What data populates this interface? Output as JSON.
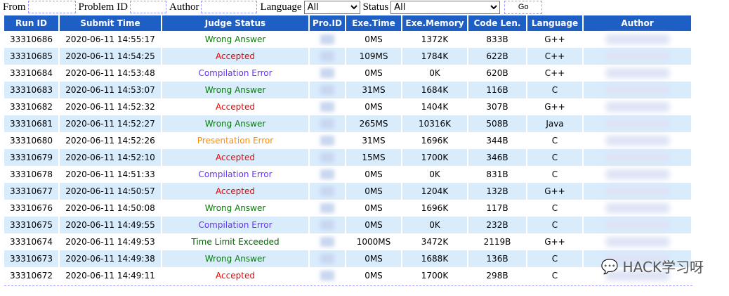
{
  "filters": {
    "from_label": "From",
    "from_value": "",
    "problem_label": "Problem ID",
    "problem_value": "",
    "author_label": "Author",
    "author_value": "",
    "language_label": "Language",
    "language_value": "All",
    "status_label": "Status",
    "status_value": "All",
    "go_label": "Go"
  },
  "columns": [
    "Run ID",
    "Submit Time",
    "Judge Status",
    "Pro.ID",
    "Exe.Time",
    "Exe.Memory",
    "Code Len.",
    "Language",
    "Author"
  ],
  "status_colors": {
    "Wrong Answer": "#008000",
    "Accepted": "#ee0000",
    "Compilation Error": "#6633ff",
    "Presentation Error": "#ff8c00",
    "Time Limit Exceeded": "#006000"
  },
  "rows": [
    {
      "run_id": "33310686",
      "time": "2020-06-11 14:55:17",
      "status": "Wrong Answer",
      "cls": "WA",
      "exe_time": "0MS",
      "memory": "1372K",
      "code_len": "833B",
      "lang": "G++"
    },
    {
      "run_id": "33310685",
      "time": "2020-06-11 14:54:25",
      "status": "Accepted",
      "cls": "AC",
      "exe_time": "109MS",
      "memory": "1784K",
      "code_len": "622B",
      "lang": "C++"
    },
    {
      "run_id": "33310684",
      "time": "2020-06-11 14:53:48",
      "status": "Compilation Error",
      "cls": "CE",
      "exe_time": "0MS",
      "memory": "0K",
      "code_len": "620B",
      "lang": "C++"
    },
    {
      "run_id": "33310683",
      "time": "2020-06-11 14:53:07",
      "status": "Wrong Answer",
      "cls": "WA",
      "exe_time": "31MS",
      "memory": "1684K",
      "code_len": "116B",
      "lang": "C"
    },
    {
      "run_id": "33310682",
      "time": "2020-06-11 14:52:32",
      "status": "Accepted",
      "cls": "AC",
      "exe_time": "0MS",
      "memory": "1404K",
      "code_len": "307B",
      "lang": "G++"
    },
    {
      "run_id": "33310681",
      "time": "2020-06-11 14:52:27",
      "status": "Wrong Answer",
      "cls": "WA",
      "exe_time": "265MS",
      "memory": "10316K",
      "code_len": "508B",
      "lang": "Java"
    },
    {
      "run_id": "33310680",
      "time": "2020-06-11 14:52:26",
      "status": "Presentation Error",
      "cls": "PE",
      "exe_time": "31MS",
      "memory": "1696K",
      "code_len": "344B",
      "lang": "C"
    },
    {
      "run_id": "33310679",
      "time": "2020-06-11 14:52:10",
      "status": "Accepted",
      "cls": "AC",
      "exe_time": "15MS",
      "memory": "1700K",
      "code_len": "346B",
      "lang": "C"
    },
    {
      "run_id": "33310678",
      "time": "2020-06-11 14:51:33",
      "status": "Compilation Error",
      "cls": "CE",
      "exe_time": "0MS",
      "memory": "0K",
      "code_len": "831B",
      "lang": "C"
    },
    {
      "run_id": "33310677",
      "time": "2020-06-11 14:50:57",
      "status": "Accepted",
      "cls": "AC",
      "exe_time": "0MS",
      "memory": "1204K",
      "code_len": "132B",
      "lang": "G++"
    },
    {
      "run_id": "33310676",
      "time": "2020-06-11 14:50:08",
      "status": "Wrong Answer",
      "cls": "WA",
      "exe_time": "0MS",
      "memory": "1696K",
      "code_len": "117B",
      "lang": "C"
    },
    {
      "run_id": "33310675",
      "time": "2020-06-11 14:49:55",
      "status": "Compilation Error",
      "cls": "CE",
      "exe_time": "0MS",
      "memory": "0K",
      "code_len": "232B",
      "lang": "C"
    },
    {
      "run_id": "33310674",
      "time": "2020-06-11 14:49:53",
      "status": "Time Limit Exceeded",
      "cls": "TLE",
      "exe_time": "1000MS",
      "memory": "3472K",
      "code_len": "2119B",
      "lang": "G++"
    },
    {
      "run_id": "33310673",
      "time": "2020-06-11 14:49:38",
      "status": "Wrong Answer",
      "cls": "WA",
      "exe_time": "0MS",
      "memory": "1688K",
      "code_len": "136B",
      "lang": "C"
    },
    {
      "run_id": "33310672",
      "time": "2020-06-11 14:49:11",
      "status": "Accepted",
      "cls": "AC",
      "exe_time": "0MS",
      "memory": "1700K",
      "code_len": "298B",
      "lang": "C"
    }
  ],
  "watermark": "HACK学习呀"
}
